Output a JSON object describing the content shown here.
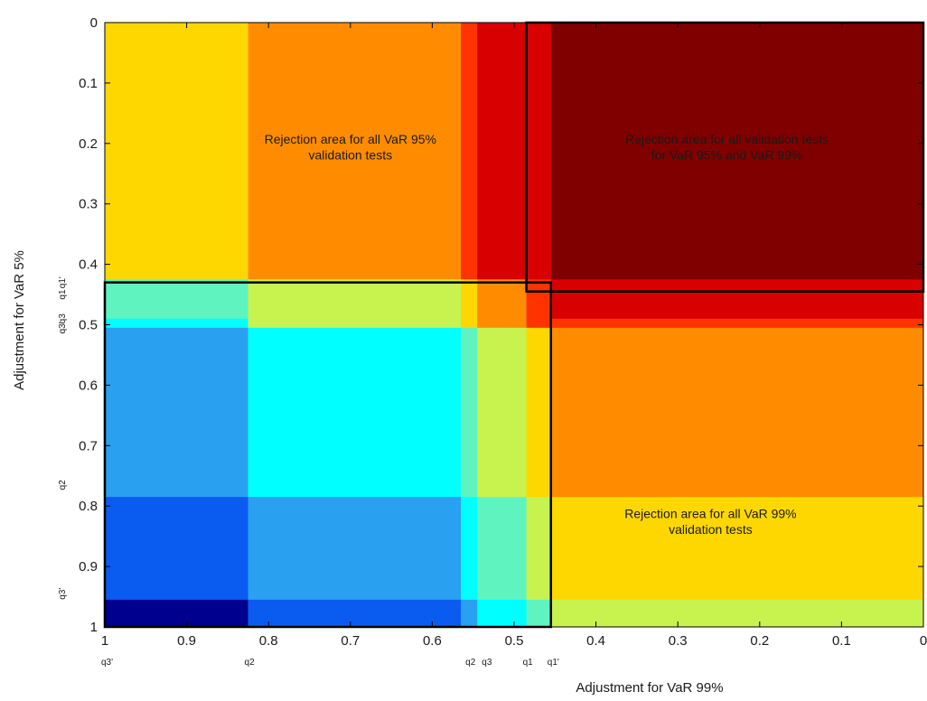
{
  "chart_data": {
    "type": "heatmap",
    "xlabel": "Adjustment for VaR 99%",
    "ylabel": "Adjustment for VaR 5%",
    "xlim": [
      1,
      0
    ],
    "ylim": [
      0,
      1
    ],
    "x_direction": "decreasing-left-to-right",
    "y_direction": "increasing-top-to-bottom",
    "x_ticks": [
      "1",
      "0.9",
      "0.8",
      "0.7",
      "0.6",
      "0.5",
      "0.4",
      "0.3",
      "0.2",
      "0.1",
      "0"
    ],
    "y_ticks": [
      "0",
      "0.1",
      "0.2",
      "0.3",
      "0.4",
      "0.5",
      "0.6",
      "0.7",
      "0.8",
      "0.9",
      "1"
    ],
    "x_quantile_markers": [
      {
        "label": "q3'",
        "value": 1.0
      },
      {
        "label": "q2",
        "value": 0.825
      },
      {
        "label": "q2",
        "value": 0.555
      },
      {
        "label": "q3",
        "value": 0.535
      },
      {
        "label": "q1",
        "value": 0.485
      },
      {
        "label": "q1'",
        "value": 0.455
      }
    ],
    "y_quantile_markers": [
      {
        "label": "q1'",
        "value": 0.43
      },
      {
        "label": "q1",
        "value": 0.45
      },
      {
        "label": "q3",
        "value": 0.49
      },
      {
        "label": "q3'",
        "value": 0.505
      },
      {
        "label": "q2",
        "value": 0.765
      },
      {
        "label": "q3'",
        "value": 0.945
      }
    ],
    "x_bands": [
      {
        "from": 1.0,
        "to": 0.825
      },
      {
        "from": 0.825,
        "to": 0.565
      },
      {
        "from": 0.565,
        "to": 0.545
      },
      {
        "from": 0.545,
        "to": 0.485
      },
      {
        "from": 0.485,
        "to": 0.455
      },
      {
        "from": 0.455,
        "to": 0.0
      }
    ],
    "y_bands": [
      {
        "from": 0.0,
        "to": 0.425
      },
      {
        "from": 0.425,
        "to": 0.445
      },
      {
        "from": 0.445,
        "to": 0.49
      },
      {
        "from": 0.49,
        "to": 0.505
      },
      {
        "from": 0.505,
        "to": 0.785
      },
      {
        "from": 0.785,
        "to": 0.955
      },
      {
        "from": 0.955,
        "to": 1.0
      }
    ],
    "color_levels": [
      "#00008f",
      "#0a5cf0",
      "#2aa0f0",
      "#00ffff",
      "#5ff3bf",
      "#c8f24d",
      "#ffd700",
      "#ff8c00",
      "#ff3300",
      "#d80000",
      "#800000"
    ],
    "cells": [
      [
        6,
        7,
        8,
        9,
        9,
        10
      ],
      [
        4,
        5,
        6,
        7,
        8,
        9
      ],
      [
        4,
        5,
        6,
        7,
        8,
        9
      ],
      [
        3,
        5,
        6,
        7,
        8,
        8
      ],
      [
        2,
        3,
        4,
        5,
        6,
        7
      ],
      [
        1,
        2,
        3,
        4,
        5,
        6
      ],
      [
        0,
        1,
        2,
        3,
        4,
        5
      ]
    ],
    "regions": [
      {
        "x_from": 1.0,
        "x_to": 0.455,
        "y_from": 0.43,
        "y_to": 1.0
      },
      {
        "x_from": 0.485,
        "x_to": 0.0,
        "y_from": 0.0,
        "y_to": 0.445
      }
    ],
    "annotations": [
      {
        "lines": [
          "Rejection area for all VaR 95%",
          "validation tests"
        ],
        "x": 0.7,
        "y": 0.2,
        "color": "#1a1a1a"
      },
      {
        "lines": [
          "Rejection area for all validation tests",
          "for VaR 95% and VaR 99%"
        ],
        "x": 0.24,
        "y": 0.2,
        "color": "#1a1a1a"
      },
      {
        "lines": [
          "Rejection area for all VaR 99%",
          "validation tests"
        ],
        "x": 0.26,
        "y": 0.82,
        "color": "#1a1a1a"
      }
    ]
  }
}
